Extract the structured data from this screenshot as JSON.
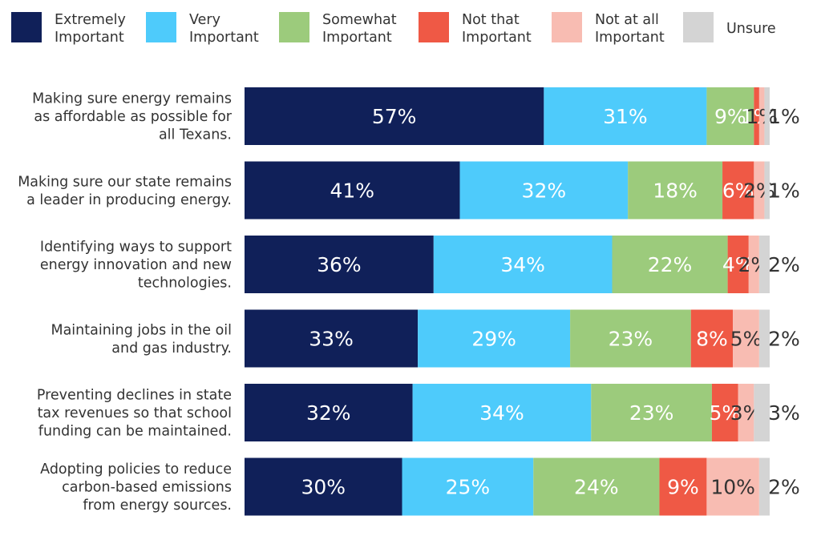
{
  "chart_data": {
    "type": "bar",
    "orientation": "horizontal",
    "stacked": true,
    "title": "",
    "xlabel": "",
    "ylabel": "",
    "xlim": [
      0,
      100
    ],
    "legend_position": "top",
    "grid": false,
    "categories": [
      [
        "Making sure energy remains",
        "as affordable as possible for",
        "all Texans."
      ],
      [
        "Making sure our state remains",
        "a leader in producing energy."
      ],
      [
        "Identifying ways to support",
        "energy innovation and new",
        "technologies."
      ],
      [
        "Maintaining jobs in the oil",
        "and gas industry."
      ],
      [
        "Preventing declines in state",
        "tax revenues so that school",
        "funding can be maintained."
      ],
      [
        "Adopting policies to reduce",
        "carbon-based emissions",
        "from energy sources."
      ]
    ],
    "series": [
      {
        "name": [
          "Extremely",
          "Important"
        ],
        "color": "#102059",
        "label_color": "#ffffff",
        "values": [
          57,
          41,
          36,
          33,
          32,
          30
        ],
        "labels": [
          "57%",
          "41%",
          "36%",
          "33%",
          "32%",
          "30%"
        ]
      },
      {
        "name": [
          "Very",
          "Important"
        ],
        "color": "#4ecbfb",
        "label_color": "#ffffff",
        "values": [
          31,
          32,
          34,
          29,
          34,
          25
        ],
        "labels": [
          "31%",
          "32%",
          "34%",
          "29%",
          "34%",
          "25%"
        ]
      },
      {
        "name": [
          "Somewhat",
          "Important"
        ],
        "color": "#9ccb7c",
        "label_color": "#ffffff",
        "values": [
          9,
          18,
          22,
          23,
          23,
          24
        ],
        "labels": [
          "9%",
          "18%",
          "22%",
          "23%",
          "23%",
          "24%"
        ]
      },
      {
        "name": [
          "Not that",
          "Important"
        ],
        "color": "#ef5945",
        "label_color": "#ffffff",
        "values": [
          1,
          6,
          4,
          8,
          5,
          9
        ],
        "labels": [
          "1%",
          "6%",
          "4%",
          "8%",
          "5%",
          "9%"
        ]
      },
      {
        "name": [
          "Not at all",
          "Important"
        ],
        "color": "#f8bcb2",
        "label_color": "#333333",
        "values": [
          1,
          2,
          2,
          5,
          3,
          10
        ],
        "labels": [
          "1%",
          "2%",
          "2%",
          "5%",
          "3%",
          "10%"
        ]
      },
      {
        "name": [
          "Unsure"
        ],
        "color": "#d4d4d4",
        "label_color": "#333333",
        "values": [
          1,
          1,
          2,
          2,
          3,
          2
        ],
        "labels": [
          "1%",
          "1%",
          "2%",
          "2%",
          "3%",
          "2%"
        ]
      }
    ]
  }
}
